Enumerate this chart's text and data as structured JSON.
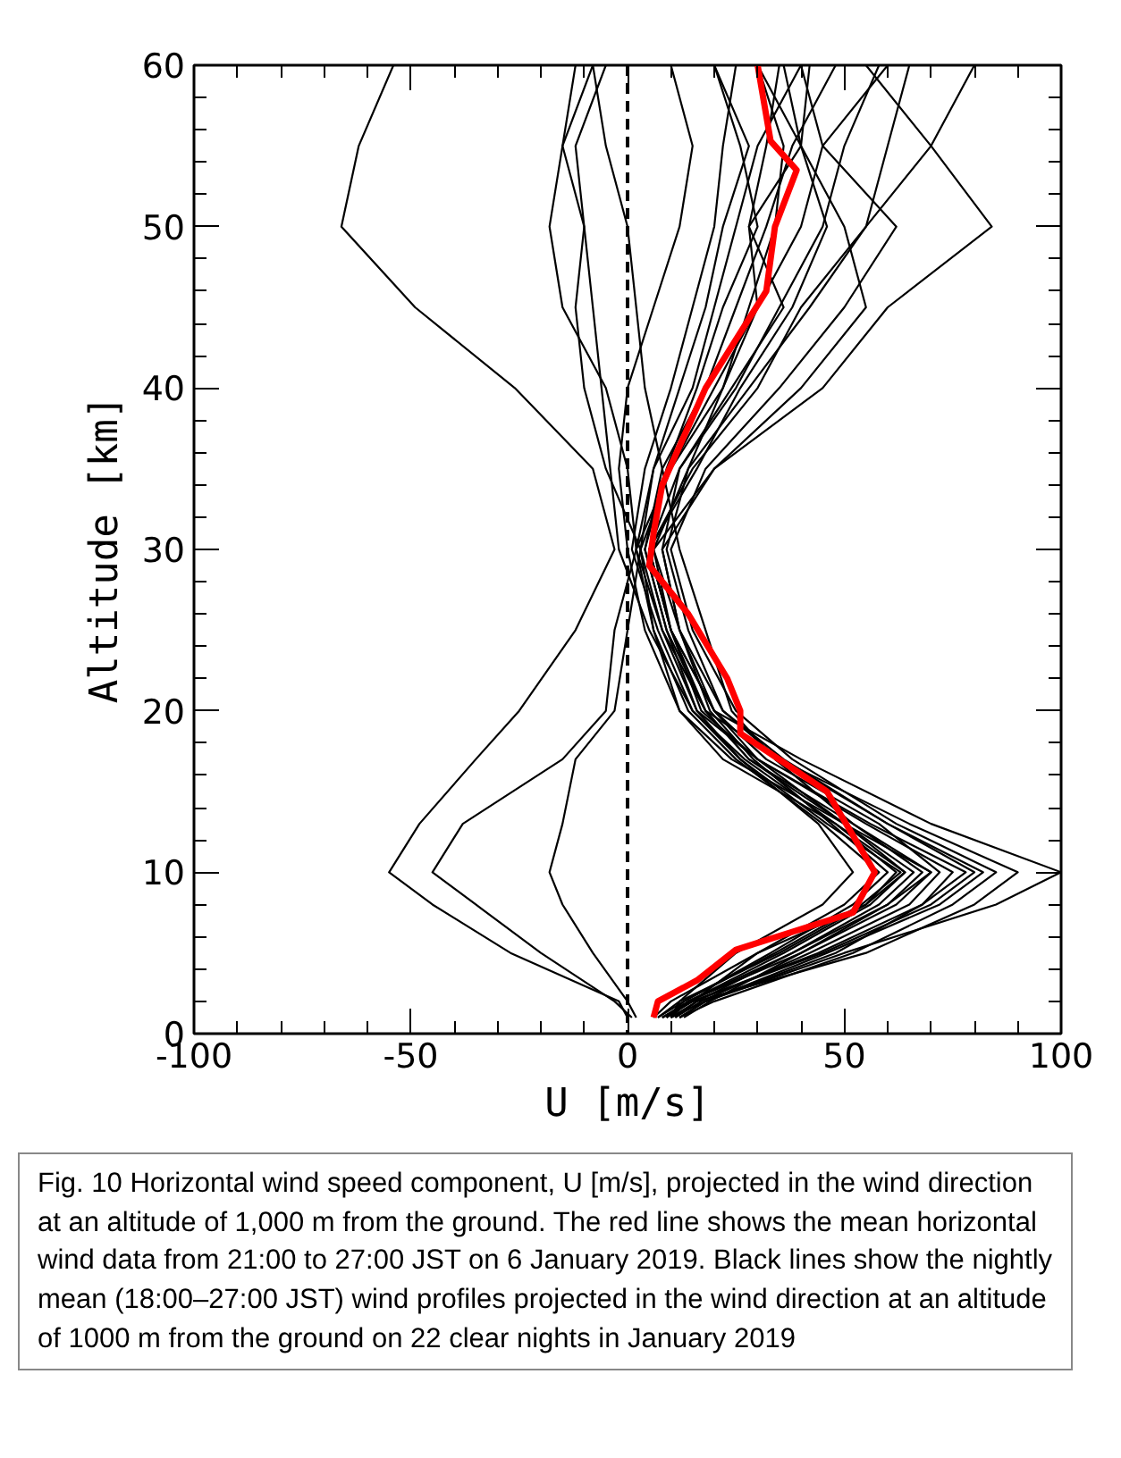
{
  "chart_data": {
    "type": "line",
    "xlabel": "U [m/s]",
    "ylabel": "Altitude [km]",
    "xlim": [
      -100,
      100
    ],
    "ylim": [
      0,
      60
    ],
    "xticks": [
      -100,
      {
        "value": -90,
        "label": null
      },
      {
        "value": -80,
        "label": null
      },
      {
        "value": -70,
        "label": null
      },
      {
        "value": -60,
        "label": null
      },
      -50,
      {
        "value": -40,
        "label": null
      },
      {
        "value": -30,
        "label": null
      },
      {
        "value": -20,
        "label": null
      },
      {
        "value": -10,
        "label": null
      },
      0,
      {
        "value": 10,
        "label": null
      },
      {
        "value": 20,
        "label": null
      },
      {
        "value": 30,
        "label": null
      },
      {
        "value": 40,
        "label": null
      },
      50,
      {
        "value": 60,
        "label": null
      },
      {
        "value": 70,
        "label": null
      },
      {
        "value": 80,
        "label": null
      },
      {
        "value": 90,
        "label": null
      },
      100
    ],
    "yticks": [
      0,
      {
        "value": 2,
        "label": null
      },
      {
        "value": 4,
        "label": null
      },
      {
        "value": 6,
        "label": null
      },
      {
        "value": 8,
        "label": null
      },
      10,
      {
        "value": 12,
        "label": null
      },
      {
        "value": 14,
        "label": null
      },
      {
        "value": 16,
        "label": null
      },
      {
        "value": 18,
        "label": null
      },
      20,
      {
        "value": 22,
        "label": null
      },
      {
        "value": 24,
        "label": null
      },
      {
        "value": 26,
        "label": null
      },
      {
        "value": 28,
        "label": null
      },
      30,
      {
        "value": 32,
        "label": null
      },
      {
        "value": 34,
        "label": null
      },
      {
        "value": 36,
        "label": null
      },
      {
        "value": 38,
        "label": null
      },
      40,
      {
        "value": 42,
        "label": null
      },
      {
        "value": 44,
        "label": null
      },
      {
        "value": 46,
        "label": null
      },
      {
        "value": 48,
        "label": null
      },
      50,
      {
        "value": 52,
        "label": null
      },
      {
        "value": 54,
        "label": null
      },
      {
        "value": 56,
        "label": null
      },
      {
        "value": 58,
        "label": null
      },
      60
    ],
    "grid": false,
    "marker": "none",
    "line_style": "solid",
    "ref_lines": [
      {
        "axis": "x",
        "value": 0,
        "label": null,
        "color": "#000000",
        "line_style": "dashed"
      }
    ],
    "annotations": [
      "Fig. 10 Horizontal wind speed component, U [m/s], projected in the wind direction at an altitude of 1,000 m from the ground. The red line shows the mean horizontal wind data from 21:00 to 27:00 JST on 6 January 2019. Black lines show the nightly mean (18:00–27:00 JST) wind profiles projected in the wind direction at an altitude of 1000 m from the ground on 22 clear nights in January 2019"
    ],
    "series": [
      {
        "color": "#000000",
        "x": [
          0,
          -2,
          -27,
          -45,
          -55,
          -48,
          -35,
          -25,
          -12,
          -3,
          -8,
          -26,
          -49,
          -66,
          -62,
          -54
        ],
        "values": [
          1,
          2,
          5,
          8,
          10,
          13,
          17,
          20,
          25,
          30,
          35,
          40,
          45,
          50,
          55,
          60
        ]
      },
      {
        "color": "#000000",
        "x": [
          1,
          -3,
          -20,
          -35,
          -45,
          -38,
          -15,
          -5,
          -3,
          2,
          0,
          -5,
          -15,
          -18,
          -15,
          -8
        ],
        "values": [
          1,
          2,
          5,
          8,
          10,
          13,
          17,
          20,
          25,
          30,
          35,
          40,
          45,
          50,
          55,
          60
        ]
      },
      {
        "color": "#000000",
        "x": [
          2,
          0,
          -8,
          -15,
          -18,
          -15,
          -12,
          -3,
          0,
          3,
          -5,
          -10,
          -12,
          -10,
          -15,
          -12
        ],
        "values": [
          1,
          2,
          5,
          8,
          10,
          13,
          17,
          20,
          25,
          30,
          35,
          40,
          45,
          50,
          55,
          60
        ]
      },
      {
        "color": "#000000",
        "x": [
          12,
          18,
          50,
          85,
          100,
          70,
          40,
          20,
          10,
          5,
          15,
          30,
          40,
          55,
          70,
          80
        ],
        "values": [
          1,
          2,
          5,
          8,
          10,
          13,
          17,
          20,
          25,
          30,
          35,
          40,
          45,
          50,
          55,
          60
        ]
      },
      {
        "color": "#000000",
        "x": [
          10,
          16,
          55,
          80,
          90,
          65,
          35,
          22,
          12,
          8,
          20,
          45,
          60,
          84,
          70,
          55
        ],
        "values": [
          1,
          2,
          5,
          8,
          10,
          13,
          17,
          20,
          25,
          30,
          35,
          40,
          45,
          50,
          55,
          60
        ]
      },
      {
        "color": "#000000",
        "x": [
          8,
          15,
          45,
          70,
          80,
          60,
          35,
          18,
          8,
          3,
          10,
          22,
          30,
          40,
          45,
          60
        ],
        "values": [
          1,
          2,
          5,
          8,
          10,
          13,
          17,
          20,
          25,
          30,
          35,
          40,
          45,
          50,
          55,
          60
        ]
      },
      {
        "color": "#000000",
        "x": [
          10,
          18,
          48,
          68,
          75,
          55,
          30,
          20,
          10,
          5,
          12,
          25,
          35,
          45,
          50,
          58
        ],
        "values": [
          1,
          2,
          5,
          8,
          10,
          13,
          17,
          20,
          25,
          30,
          35,
          40,
          45,
          50,
          55,
          60
        ]
      },
      {
        "color": "#000000",
        "x": [
          9,
          14,
          40,
          62,
          70,
          52,
          28,
          18,
          9,
          4,
          8,
          18,
          25,
          32,
          38,
          48
        ],
        "values": [
          1,
          2,
          5,
          8,
          10,
          13,
          17,
          20,
          25,
          30,
          35,
          40,
          45,
          50,
          55,
          60
        ]
      },
      {
        "color": "#000000",
        "x": [
          8,
          14,
          38,
          58,
          66,
          50,
          30,
          16,
          8,
          2,
          6,
          15,
          20,
          25,
          30,
          40
        ],
        "values": [
          1,
          2,
          5,
          8,
          10,
          13,
          17,
          20,
          25,
          30,
          35,
          40,
          45,
          50,
          55,
          60
        ]
      },
      {
        "color": "#000000",
        "x": [
          11,
          17,
          42,
          65,
          72,
          58,
          32,
          20,
          12,
          6,
          14,
          28,
          42,
          55,
          60,
          65
        ],
        "values": [
          1,
          2,
          5,
          8,
          10,
          13,
          17,
          20,
          25,
          30,
          35,
          40,
          45,
          50,
          55,
          60
        ]
      },
      {
        "color": "#000000",
        "x": [
          7,
          12,
          35,
          55,
          62,
          48,
          27,
          15,
          7,
          1,
          4,
          10,
          15,
          20,
          22,
          25
        ],
        "values": [
          1,
          2,
          5,
          8,
          10,
          13,
          17,
          20,
          25,
          30,
          35,
          40,
          45,
          50,
          55,
          60
        ]
      },
      {
        "color": "#000000",
        "x": [
          12,
          20,
          52,
          75,
          85,
          62,
          38,
          25,
          15,
          10,
          18,
          35,
          50,
          62,
          45,
          40
        ],
        "values": [
          1,
          2,
          5,
          8,
          10,
          13,
          17,
          20,
          25,
          30,
          35,
          40,
          45,
          50,
          55,
          60
        ]
      },
      {
        "color": "#000000",
        "x": [
          6,
          10,
          30,
          50,
          58,
          45,
          25,
          14,
          6,
          2,
          10,
          20,
          30,
          28,
          32,
          35
        ],
        "values": [
          1,
          2,
          5,
          8,
          10,
          13,
          17,
          20,
          25,
          30,
          35,
          40,
          45,
          50,
          55,
          60
        ]
      },
      {
        "color": "#000000",
        "x": [
          9,
          15,
          44,
          68,
          78,
          56,
          30,
          17,
          10,
          5,
          16,
          26,
          38,
          46,
          40,
          36
        ],
        "values": [
          1,
          2,
          5,
          8,
          10,
          13,
          17,
          20,
          25,
          30,
          35,
          40,
          45,
          50,
          55,
          60
        ]
      },
      {
        "color": "#000000",
        "x": [
          13,
          19,
          40,
          60,
          68,
          52,
          34,
          24,
          18,
          12,
          8,
          4,
          2,
          0,
          -5,
          -8
        ],
        "values": [
          1,
          2,
          5,
          8,
          10,
          13,
          17,
          20,
          25,
          30,
          35,
          40,
          45,
          50,
          55,
          60
        ]
      },
      {
        "color": "#000000",
        "x": [
          10,
          12,
          25,
          45,
          52,
          44,
          26,
          15,
          5,
          -2,
          -4,
          -6,
          -8,
          -10,
          -12,
          -5
        ],
        "values": [
          1,
          2,
          5,
          8,
          10,
          13,
          17,
          20,
          25,
          30,
          35,
          40,
          45,
          50,
          55,
          60
        ]
      },
      {
        "color": "#000000",
        "x": [
          8,
          15,
          30,
          55,
          64,
          48,
          22,
          12,
          4,
          0,
          -2,
          0,
          6,
          12,
          15,
          10
        ],
        "values": [
          1,
          2,
          5,
          8,
          10,
          13,
          17,
          20,
          25,
          30,
          35,
          40,
          45,
          50,
          55,
          60
        ]
      },
      {
        "color": "#000000",
        "x": [
          11,
          16,
          38,
          60,
          70,
          50,
          24,
          12,
          6,
          3,
          6,
          12,
          18,
          22,
          28,
          20
        ],
        "values": [
          1,
          2,
          5,
          8,
          10,
          13,
          17,
          20,
          25,
          30,
          35,
          40,
          45,
          50,
          55,
          60
        ]
      },
      {
        "color": "#000000",
        "x": [
          9,
          13,
          33,
          52,
          60,
          47,
          29,
          19,
          12,
          8,
          12,
          24,
          36,
          28,
          40,
          42
        ],
        "values": [
          1,
          2,
          5,
          8,
          10,
          13,
          17,
          20,
          25,
          30,
          35,
          40,
          45,
          50,
          55,
          60
        ]
      },
      {
        "color": "#000000",
        "x": [
          12,
          18,
          46,
          72,
          82,
          60,
          36,
          22,
          14,
          9,
          14,
          22,
          28,
          34,
          36,
          30
        ],
        "values": [
          1,
          2,
          5,
          8,
          10,
          13,
          17,
          20,
          25,
          30,
          35,
          40,
          45,
          50,
          55,
          60
        ]
      },
      {
        "color": "#000000",
        "x": [
          10,
          14,
          36,
          56,
          64,
          50,
          28,
          18,
          10,
          6,
          20,
          40,
          55,
          50,
          40,
          30
        ],
        "values": [
          1,
          2,
          5,
          8,
          10,
          13,
          17,
          20,
          25,
          30,
          35,
          40,
          45,
          50,
          55,
          60
        ]
      },
      {
        "color": "#000000",
        "x": [
          7,
          13,
          34,
          54,
          63,
          46,
          26,
          16,
          9,
          4,
          9,
          16,
          22,
          30,
          26,
          20
        ],
        "values": [
          1,
          2,
          5,
          8,
          10,
          13,
          17,
          20,
          25,
          30,
          35,
          40,
          45,
          50,
          55,
          60
        ]
      },
      {
        "color": "#ff0000",
        "x": [
          6,
          7,
          16,
          25,
          52,
          57,
          46,
          26,
          26,
          23,
          14,
          5,
          6,
          8,
          18,
          32,
          34,
          39,
          33,
          30
        ],
        "values": [
          1,
          2,
          3.3,
          5.2,
          7.5,
          10,
          15,
          18.6,
          20,
          22,
          26,
          29,
          31,
          34,
          40,
          46,
          50,
          53.5,
          55.3,
          60
        ]
      }
    ]
  }
}
